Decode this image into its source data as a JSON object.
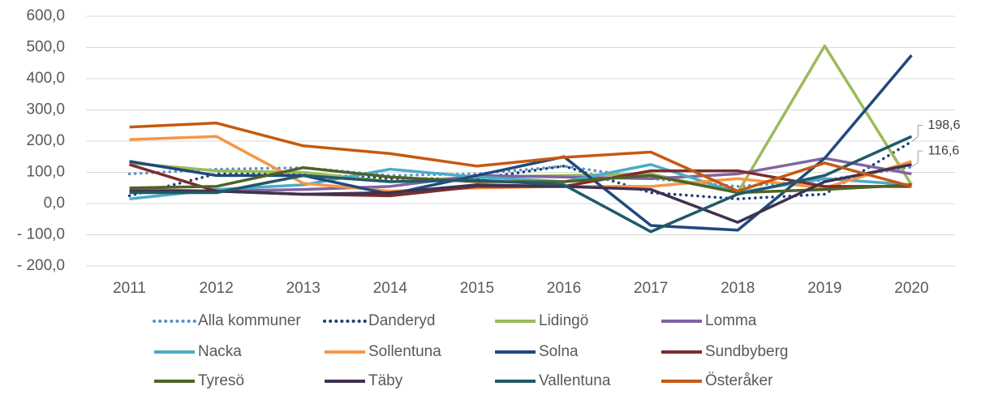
{
  "chart_data": {
    "type": "line",
    "categories": [
      "2011",
      "2012",
      "2013",
      "2014",
      "2015",
      "2016",
      "2017",
      "2018",
      "2019",
      "2020"
    ],
    "ylim": [
      -200,
      600
    ],
    "yticks": [
      {
        "value": -200,
        "label": "- 200,0"
      },
      {
        "value": -100,
        "label": "- 100,0"
      },
      {
        "value": 0,
        "label": "0,0"
      },
      {
        "value": 100,
        "label": "100,0"
      },
      {
        "value": 200,
        "label": "200,0"
      },
      {
        "value": 300,
        "label": "300,0"
      },
      {
        "value": 400,
        "label": "400,0"
      },
      {
        "value": 500,
        "label": "500,0"
      },
      {
        "value": 600,
        "label": "600,0"
      }
    ],
    "grid": true,
    "legend": "bottom",
    "series": [
      {
        "name": "Alla kommuner",
        "color": "#5b8fc9",
        "dashed": true,
        "values": [
          95,
          110,
          115,
          90,
          95,
          120,
          80,
          55,
          75,
          116.6
        ],
        "value_labels": [
          null,
          null,
          null,
          null,
          null,
          null,
          null,
          null,
          null,
          "116,6"
        ]
      },
      {
        "name": "Danderyd",
        "color": "#1f3f77",
        "dashed": true,
        "values": [
          25,
          95,
          95,
          80,
          80,
          120,
          35,
          15,
          30,
          198.6
        ],
        "value_labels": [
          null,
          null,
          null,
          null,
          null,
          null,
          null,
          null,
          null,
          "198,6"
        ]
      },
      {
        "name": "Lidingö",
        "color": "#9bbb59",
        "values": [
          130,
          105,
          100,
          70,
          85,
          90,
          95,
          35,
          505,
          60
        ]
      },
      {
        "name": "Lomma",
        "color": "#8064a2",
        "values": [
          45,
          40,
          45,
          55,
          90,
          85,
          80,
          95,
          145,
          95
        ]
      },
      {
        "name": "Nacka",
        "color": "#4bacc6",
        "values": [
          15,
          45,
          60,
          110,
          85,
          70,
          125,
          35,
          80,
          60
        ]
      },
      {
        "name": "Sollentuna",
        "color": "#f79646",
        "values": [
          205,
          215,
          65,
          40,
          50,
          55,
          55,
          80,
          50,
          135
        ]
      },
      {
        "name": "Solna",
        "color": "#1f497d",
        "values": [
          135,
          90,
          90,
          30,
          90,
          150,
          -70,
          -85,
          145,
          475
        ]
      },
      {
        "name": "Sundbyberg",
        "color": "#7b2c2c",
        "values": [
          125,
          40,
          30,
          25,
          55,
          55,
          105,
          105,
          55,
          55
        ]
      },
      {
        "name": "Tyresö",
        "color": "#4f6228",
        "values": [
          50,
          55,
          115,
          85,
          70,
          70,
          90,
          35,
          45,
          60
        ]
      },
      {
        "name": "Täby",
        "color": "#3f3151",
        "values": [
          40,
          40,
          30,
          35,
          60,
          55,
          45,
          -60,
          70,
          125
        ]
      },
      {
        "name": "Vallentuna",
        "color": "#215968",
        "values": [
          35,
          35,
          90,
          70,
          75,
          60,
          -90,
          30,
          90,
          215
        ]
      },
      {
        "name": "Österåker",
        "color": "#c65911",
        "values": [
          245,
          258,
          185,
          160,
          120,
          148,
          165,
          40,
          130,
          55
        ]
      }
    ]
  }
}
